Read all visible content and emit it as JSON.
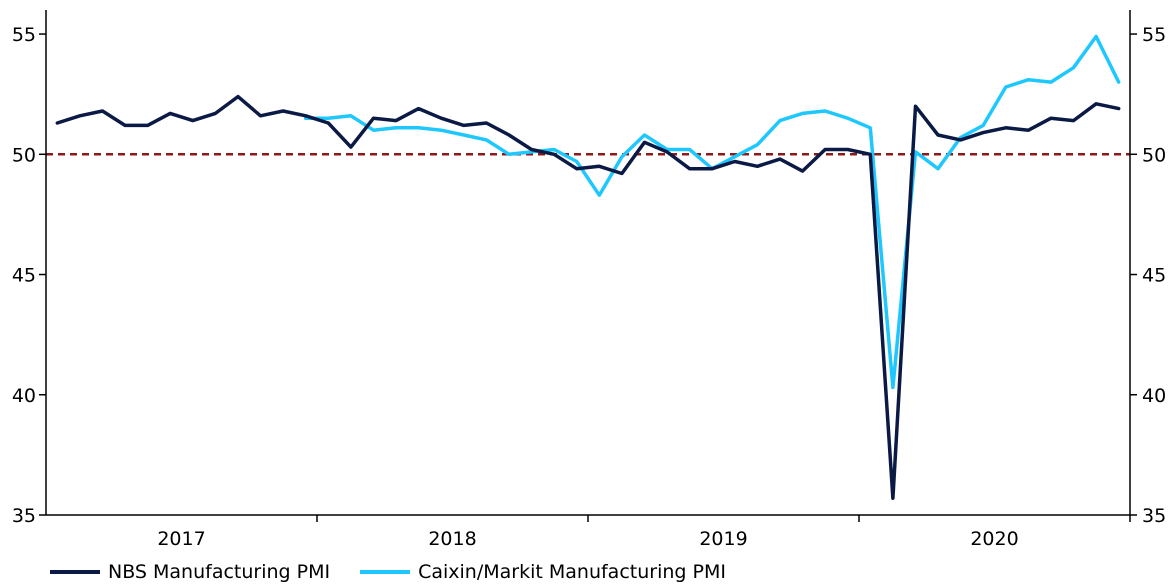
{
  "chart_data": {
    "type": "line",
    "ylim": [
      35,
      56
    ],
    "y_ticks": [
      35,
      40,
      45,
      50,
      55
    ],
    "x_category_labels": [
      "2017",
      "2018",
      "2019",
      "2020"
    ],
    "reference_line": {
      "value": 50,
      "color": "#8B1A1A",
      "style": "dashed"
    },
    "grid": false,
    "legend_placement": "bottom-left",
    "x": [
      "2017-01",
      "2017-02",
      "2017-03",
      "2017-04",
      "2017-05",
      "2017-06",
      "2017-07",
      "2017-08",
      "2017-09",
      "2017-10",
      "2017-11",
      "2017-12",
      "2018-01",
      "2018-02",
      "2018-03",
      "2018-04",
      "2018-05",
      "2018-06",
      "2018-07",
      "2018-08",
      "2018-09",
      "2018-10",
      "2018-11",
      "2018-12",
      "2019-01",
      "2019-02",
      "2019-03",
      "2019-04",
      "2019-05",
      "2019-06",
      "2019-07",
      "2019-08",
      "2019-09",
      "2019-10",
      "2019-11",
      "2019-12",
      "2020-01",
      "2020-02",
      "2020-03",
      "2020-04",
      "2020-05",
      "2020-06",
      "2020-07",
      "2020-08",
      "2020-09",
      "2020-10",
      "2020-11",
      "2020-12"
    ],
    "series": [
      {
        "name": "NBS Manufacturing PMI",
        "color": "#0b1a45",
        "values": [
          51.3,
          51.6,
          51.8,
          51.2,
          51.2,
          51.7,
          51.4,
          51.7,
          52.4,
          51.6,
          51.8,
          51.6,
          51.3,
          50.3,
          51.5,
          51.4,
          51.9,
          51.5,
          51.2,
          51.3,
          50.8,
          50.2,
          50.0,
          49.4,
          49.5,
          49.2,
          50.5,
          50.1,
          49.4,
          49.4,
          49.7,
          49.5,
          49.8,
          49.3,
          50.2,
          50.2,
          50.0,
          35.7,
          52.0,
          50.8,
          50.6,
          50.9,
          51.1,
          51.0,
          51.5,
          51.4,
          52.1,
          51.9
        ]
      },
      {
        "name": "Caixin/Markit Manufacturing PMI",
        "color": "#1ec8ff",
        "values": [
          null,
          null,
          null,
          null,
          null,
          null,
          null,
          null,
          null,
          null,
          null,
          51.5,
          51.5,
          51.6,
          51.0,
          51.1,
          51.1,
          51.0,
          50.8,
          50.6,
          50.0,
          50.1,
          50.2,
          49.7,
          48.3,
          49.9,
          50.8,
          50.2,
          50.2,
          49.4,
          49.9,
          50.4,
          51.4,
          51.7,
          51.8,
          51.5,
          51.1,
          40.3,
          50.1,
          49.4,
          50.7,
          51.2,
          52.8,
          53.1,
          53.0,
          53.6,
          54.9,
          53.0
        ]
      }
    ]
  }
}
